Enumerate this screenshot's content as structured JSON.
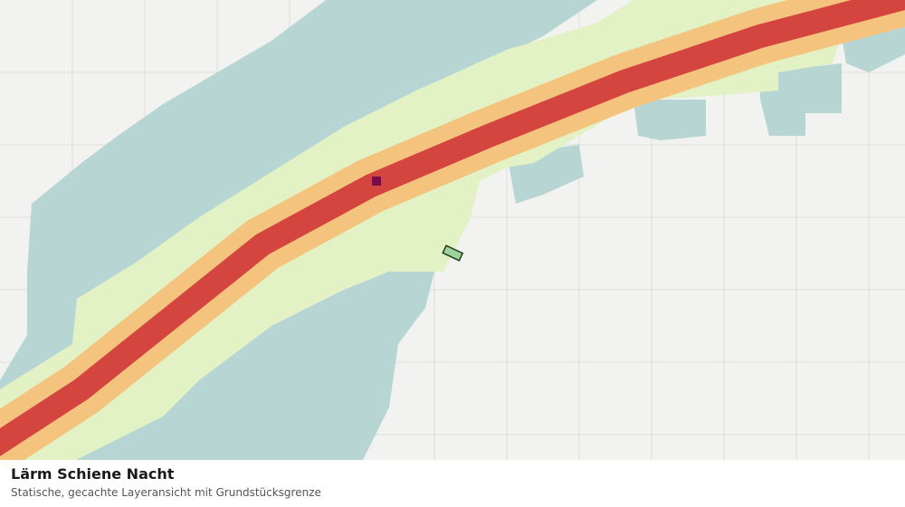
{
  "legend": {
    "title": "Lärm Schiene Nacht",
    "subtitle": "Statische, gecachte Layeransicht mit Grundstücksgrenze"
  }
}
